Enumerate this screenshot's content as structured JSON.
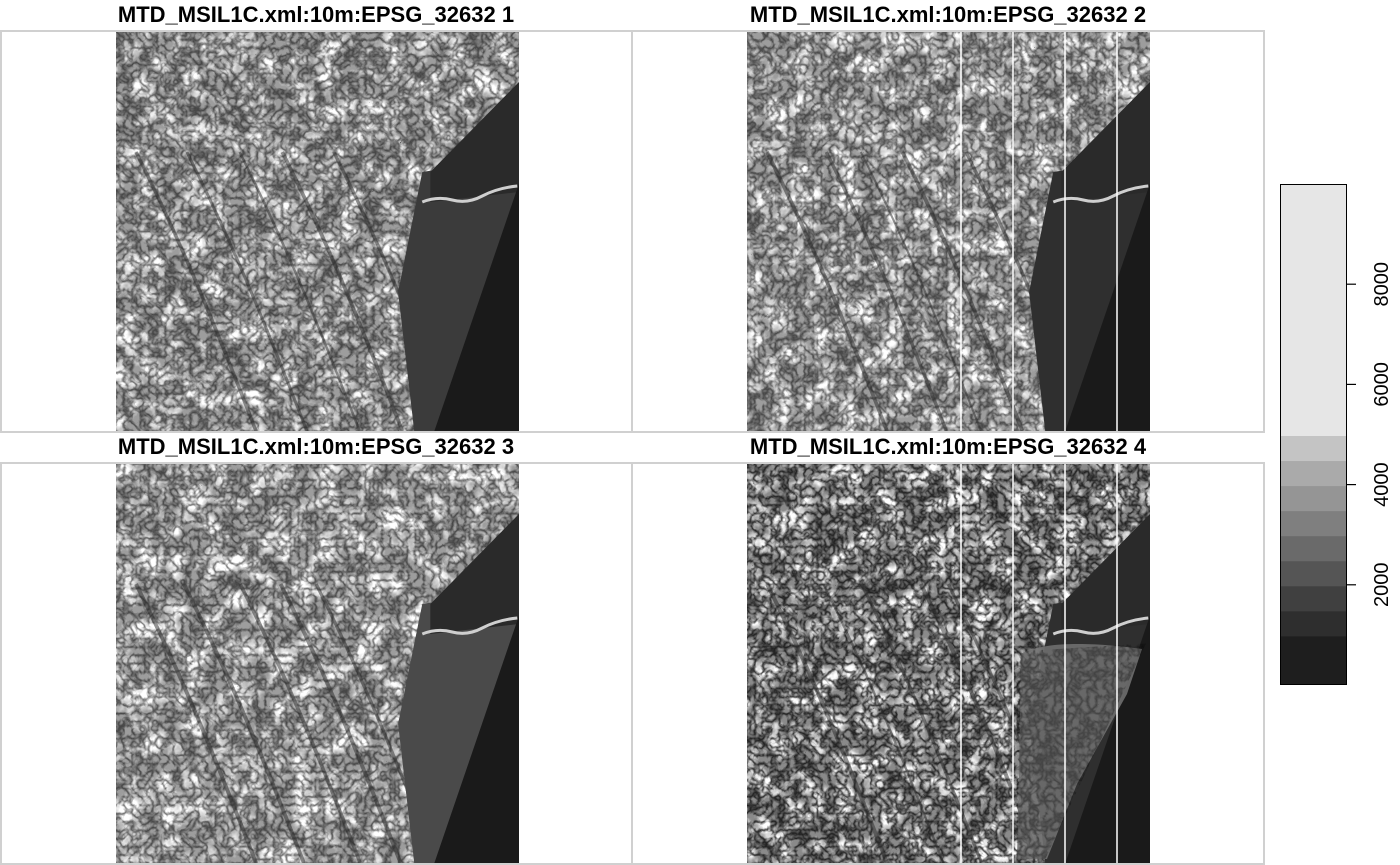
{
  "panels": [
    {
      "title": "MTD_MSIL1C.xml:10m:EPSG_32632 1",
      "variant": "band1"
    },
    {
      "title": "MTD_MSIL1C.xml:10m:EPSG_32632 2",
      "variant": "band2"
    },
    {
      "title": "MTD_MSIL1C.xml:10m:EPSG_32632 3",
      "variant": "band3"
    },
    {
      "title": "MTD_MSIL1C.xml:10m:EPSG_32632 4",
      "variant": "band4"
    }
  ],
  "colors": {
    "frame": "#d0d0d0",
    "nodata": "#ffffff",
    "dark": "#1a1a1a"
  },
  "legend": {
    "type": "stepped-grayscale",
    "min": 0,
    "max": 10000,
    "ticks": [
      {
        "value": 2000,
        "label": "2000"
      },
      {
        "value": 4000,
        "label": "4000"
      },
      {
        "value": 6000,
        "label": "6000"
      },
      {
        "value": 8000,
        "label": "8000"
      }
    ],
    "steps": [
      {
        "upto": 1000,
        "color": "#1e1e1e"
      },
      {
        "upto": 1500,
        "color": "#2e2e2e"
      },
      {
        "upto": 2000,
        "color": "#404040"
      },
      {
        "upto": 2500,
        "color": "#555555"
      },
      {
        "upto": 3000,
        "color": "#6a6a6a"
      },
      {
        "upto": 3500,
        "color": "#7f7f7f"
      },
      {
        "upto": 4000,
        "color": "#959595"
      },
      {
        "upto": 4500,
        "color": "#aaaaaa"
      },
      {
        "upto": 5000,
        "color": "#c4c4c4"
      },
      {
        "upto": 10000,
        "color": "#e6e6e6"
      }
    ]
  }
}
